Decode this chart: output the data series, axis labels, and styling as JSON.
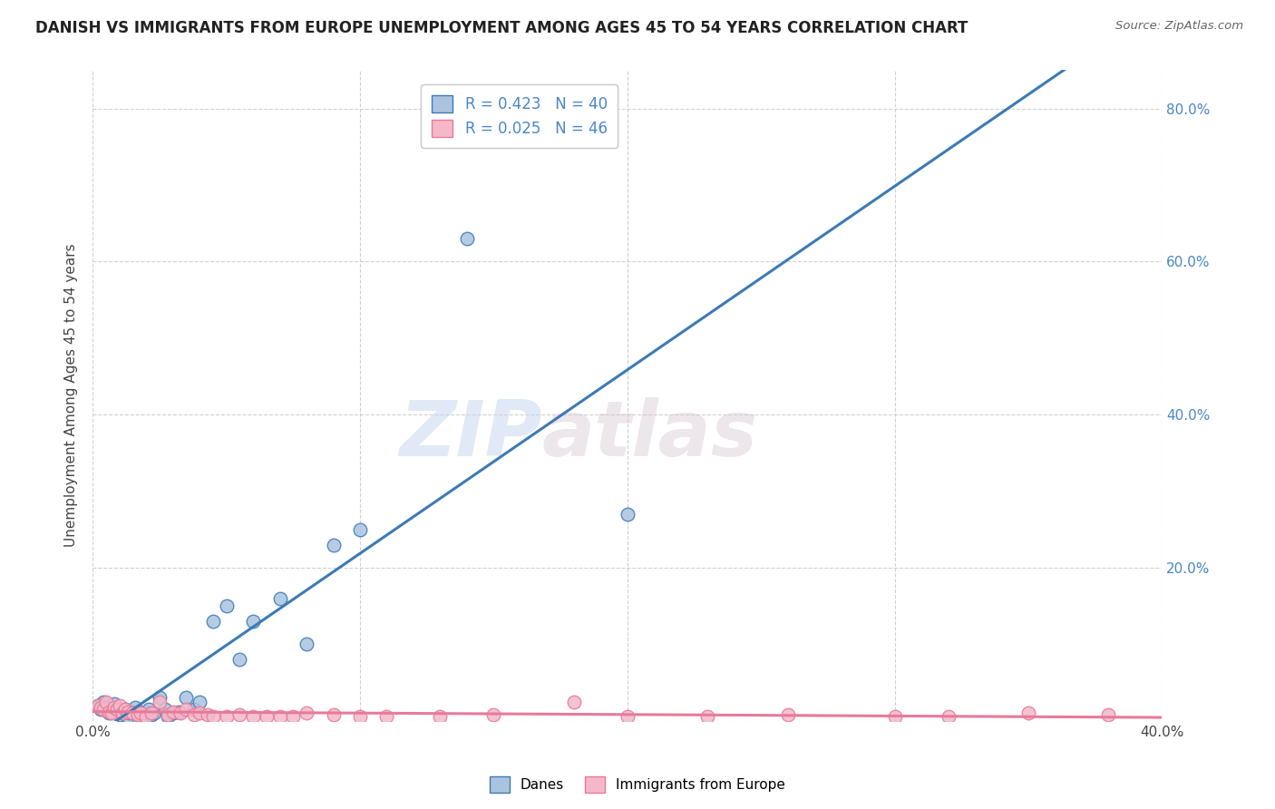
{
  "title": "DANISH VS IMMIGRANTS FROM EUROPE UNEMPLOYMENT AMONG AGES 45 TO 54 YEARS CORRELATION CHART",
  "source": "Source: ZipAtlas.com",
  "ylabel": "Unemployment Among Ages 45 to 54 years",
  "xlim": [
    0.0,
    0.4
  ],
  "ylim": [
    0.0,
    0.85
  ],
  "danes_color": "#aac4e0",
  "immigrants_color": "#f4b8c8",
  "danes_line_color": "#3d7ab5",
  "immigrants_line_color": "#e87a99",
  "danes_R": 0.423,
  "danes_N": 40,
  "immigrants_R": 0.025,
  "immigrants_N": 46,
  "danes_x": [
    0.002,
    0.003,
    0.004,
    0.005,
    0.006,
    0.007,
    0.008,
    0.009,
    0.01,
    0.011,
    0.012,
    0.013,
    0.014,
    0.015,
    0.016,
    0.017,
    0.018,
    0.019,
    0.02,
    0.021,
    0.022,
    0.023,
    0.025,
    0.027,
    0.028,
    0.03,
    0.032,
    0.035,
    0.038,
    0.04,
    0.045,
    0.05,
    0.055,
    0.06,
    0.07,
    0.08,
    0.09,
    0.1,
    0.14,
    0.2
  ],
  "danes_y": [
    0.02,
    0.015,
    0.025,
    0.018,
    0.01,
    0.012,
    0.022,
    0.015,
    0.008,
    0.01,
    0.015,
    0.005,
    0.01,
    0.012,
    0.018,
    0.008,
    0.01,
    0.005,
    0.012,
    0.015,
    0.008,
    0.01,
    0.03,
    0.015,
    0.005,
    0.01,
    0.012,
    0.03,
    0.015,
    0.025,
    0.13,
    0.15,
    0.08,
    0.13,
    0.16,
    0.1,
    0.23,
    0.25,
    0.63,
    0.27
  ],
  "immigrants_x": [
    0.002,
    0.003,
    0.004,
    0.005,
    0.006,
    0.007,
    0.008,
    0.009,
    0.01,
    0.011,
    0.012,
    0.013,
    0.015,
    0.017,
    0.018,
    0.02,
    0.022,
    0.025,
    0.028,
    0.03,
    0.033,
    0.035,
    0.038,
    0.04,
    0.043,
    0.045,
    0.05,
    0.055,
    0.06,
    0.065,
    0.07,
    0.075,
    0.08,
    0.09,
    0.1,
    0.11,
    0.13,
    0.15,
    0.18,
    0.2,
    0.23,
    0.26,
    0.3,
    0.32,
    0.35,
    0.38
  ],
  "immigrants_y": [
    0.02,
    0.018,
    0.015,
    0.025,
    0.012,
    0.01,
    0.018,
    0.015,
    0.02,
    0.01,
    0.015,
    0.012,
    0.01,
    0.008,
    0.01,
    0.005,
    0.01,
    0.025,
    0.008,
    0.012,
    0.01,
    0.015,
    0.008,
    0.01,
    0.008,
    0.005,
    0.005,
    0.008,
    0.005,
    0.005,
    0.005,
    0.005,
    0.01,
    0.008,
    0.005,
    0.005,
    0.005,
    0.008,
    0.025,
    0.005,
    0.005,
    0.008,
    0.005,
    0.005,
    0.01,
    0.008
  ],
  "watermark_zip": "ZIP",
  "watermark_atlas": "atlas",
  "legend_label_danes": "Danes",
  "legend_label_immigrants": "Immigrants from Europe"
}
